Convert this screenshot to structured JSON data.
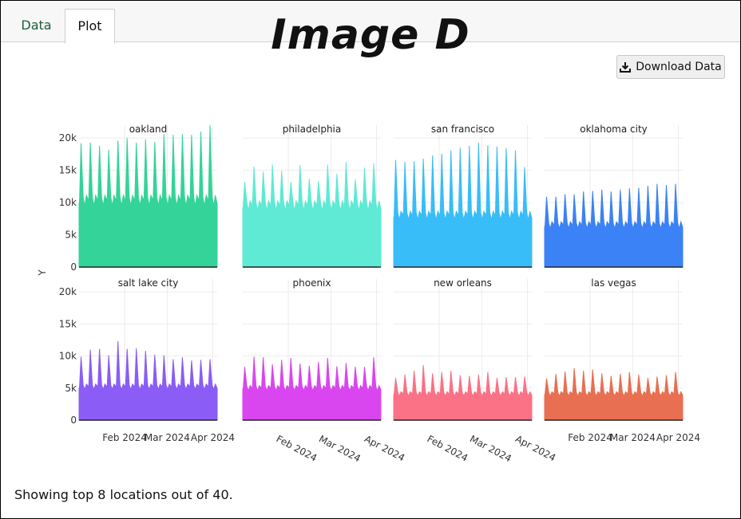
{
  "tabs": [
    {
      "label": "Data"
    },
    {
      "label": "Plot"
    }
  ],
  "overlay_title": "Image D",
  "download_button": {
    "label": "Download Data",
    "icon": "download-icon"
  },
  "footer_text": "Showing top 8 locations out of 40.",
  "chart_data": {
    "type": "area",
    "ylabel": "Y",
    "ylim": [
      0,
      22000
    ],
    "yticks": [
      0,
      5000,
      10000,
      15000,
      20000
    ],
    "ytick_labels": [
      "0",
      "5k",
      "10k",
      "15k",
      "20k"
    ],
    "xticks": [
      "Feb 2024",
      "Mar 2024",
      "Apr 2024"
    ],
    "x_range": [
      "2024-01-01",
      "2024-04-04"
    ],
    "grid": true,
    "panels": [
      {
        "title": "oakland",
        "color": "#34d399",
        "base": 10300,
        "peaks": [
          19200,
          19300,
          18800,
          18200,
          19600,
          20000,
          19300,
          19800,
          19400,
          20600,
          20500,
          20600,
          20500,
          21000,
          22000
        ]
      },
      {
        "title": "philadelphia",
        "color": "#5eead4",
        "base": 9500,
        "peaks": [
          13200,
          15600,
          14800,
          15900,
          14900,
          13200,
          15800,
          13700,
          13300,
          15900,
          14500,
          16300,
          13600,
          15400,
          16100
        ]
      },
      {
        "title": "san francisco",
        "color": "#38bdf8",
        "base": 8000,
        "peaks": [
          16600,
          16300,
          16400,
          16800,
          17300,
          17600,
          18100,
          18500,
          18800,
          19300,
          18900,
          18700,
          18400,
          18100,
          15500
        ]
      },
      {
        "title": "oklahoma city",
        "color": "#3b82f6",
        "base": 6500,
        "peaks": [
          10900,
          10900,
          11300,
          11300,
          11700,
          11800,
          12000,
          11700,
          12000,
          12200,
          12300,
          12600,
          12900,
          12700,
          12900
        ]
      },
      {
        "title": "salt lake city",
        "color": "#8b5cf6",
        "base": 5200,
        "peaks": [
          9900,
          11000,
          11100,
          10100,
          12300,
          11100,
          11200,
          10800,
          10200,
          10100,
          9500,
          9800,
          9300,
          9400,
          9500
        ]
      },
      {
        "title": "phoenix",
        "color": "#d946ef",
        "base": 5000,
        "peaks": [
          8300,
          9900,
          9800,
          8700,
          9400,
          9700,
          8800,
          8500,
          9100,
          9700,
          8400,
          8900,
          8300,
          8300,
          9800
        ]
      },
      {
        "title": "new orleans",
        "color": "#fb7185",
        "base": 4100,
        "peaks": [
          6600,
          7100,
          7700,
          8600,
          7300,
          7500,
          7700,
          7000,
          6900,
          7100,
          7500,
          6600,
          6700,
          6700,
          6800
        ]
      },
      {
        "title": "las vegas",
        "color": "#e86f51",
        "base": 4100,
        "peaks": [
          6500,
          7200,
          7600,
          8100,
          7700,
          7900,
          7300,
          6900,
          7200,
          7500,
          7100,
          6600,
          6800,
          7000,
          7500
        ]
      }
    ]
  }
}
